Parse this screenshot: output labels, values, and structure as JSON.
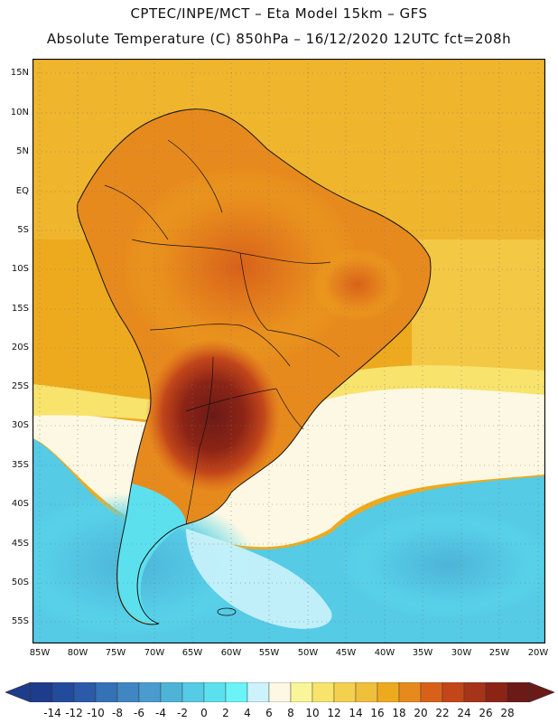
{
  "header": {
    "line1": "CPTEC/INPE/MCT –  Eta Model 15km – GFS",
    "line2": "Absolute Temperature (C) 850hPa – 16/12/2020 12UTC fct=208h"
  },
  "map": {
    "lat_labels": [
      "15N",
      "10N",
      "5N",
      "EQ",
      "5S",
      "10S",
      "15S",
      "20S",
      "25S",
      "30S",
      "35S",
      "40S",
      "45S",
      "50S",
      "55S"
    ],
    "lon_labels": [
      "85W",
      "80W",
      "75W",
      "70W",
      "65W",
      "60W",
      "55W",
      "50W",
      "45W",
      "40W",
      "35W",
      "30W",
      "25W",
      "20W"
    ],
    "description_region": "South America"
  },
  "legend": {
    "labels": [
      "-14",
      "-12",
      "-10",
      "-8",
      "-6",
      "-4",
      "-2",
      "0",
      "2",
      "4",
      "6",
      "8",
      "10",
      "12",
      "14",
      "16",
      "18",
      "20",
      "22",
      "24",
      "26",
      "28"
    ],
    "colors": [
      "#1e3c8c",
      "#234b9c",
      "#2a5aa8",
      "#3471b6",
      "#3f86c2",
      "#4a9bcf",
      "#4db4d8",
      "#55cbe6",
      "#5ce0ee",
      "#6af4f8",
      "#ccf3fb",
      "#fdf8e4",
      "#fbf59a",
      "#f8e36c",
      "#f4d04f",
      "#f0bf3c",
      "#eeaa1e",
      "#e78a1d",
      "#d8611a",
      "#c2461a",
      "#a53418",
      "#8c2416",
      "#6b1a17"
    ],
    "end_left_color": "#1e3c8c",
    "end_right_color": "#6b1a17"
  }
}
